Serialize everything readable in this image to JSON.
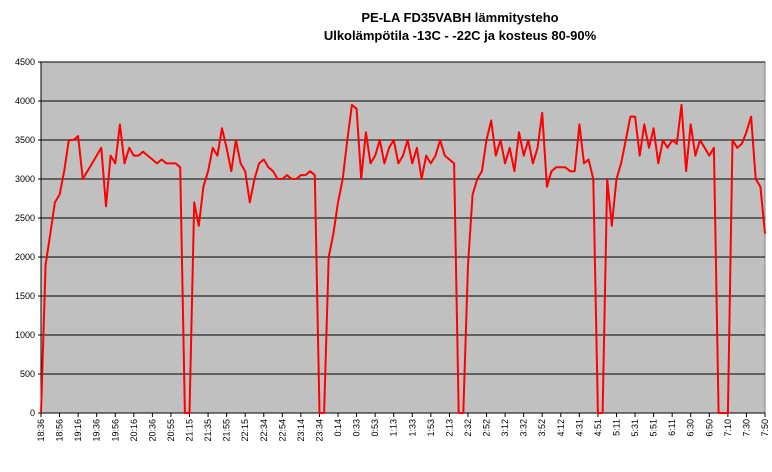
{
  "chart_data": {
    "type": "line",
    "title": "PE-LA FD35VABH lämmitysteho",
    "subtitle": "Ulkolämpötila  -13C - -22C ja kosteus 80-90%",
    "categories": [
      "18:36",
      null,
      null,
      null,
      "18:56",
      null,
      null,
      null,
      "19:16",
      null,
      null,
      null,
      "19:36",
      null,
      null,
      null,
      "19:56",
      null,
      null,
      null,
      "20:16",
      null,
      null,
      null,
      "20:36",
      null,
      null,
      null,
      "20:55",
      null,
      null,
      null,
      "21:15",
      null,
      null,
      null,
      "21:35",
      null,
      null,
      null,
      "21:55",
      null,
      null,
      null,
      "22:15",
      null,
      null,
      null,
      "22:34",
      null,
      null,
      null,
      "22:54",
      null,
      null,
      null,
      "23:14",
      null,
      null,
      null,
      "23:34",
      null,
      null,
      null,
      "0:14",
      null,
      null,
      null,
      "0:33",
      null,
      null,
      null,
      "0:53",
      null,
      null,
      null,
      "1:13",
      null,
      null,
      null,
      "1:33",
      null,
      null,
      null,
      "1:53",
      null,
      null,
      null,
      "2:13",
      null,
      null,
      null,
      "2:32",
      null,
      null,
      null,
      "2:52",
      null,
      null,
      null,
      "3:12",
      null,
      null,
      null,
      "3:32",
      null,
      null,
      null,
      "3:52",
      null,
      null,
      null,
      "4:12",
      null,
      null,
      null,
      "4:31",
      null,
      null,
      null,
      "4:51",
      null,
      null,
      null,
      "5:11",
      null,
      null,
      null,
      "5:31",
      null,
      null,
      null,
      "5:51",
      null,
      null,
      null,
      "6:11",
      null,
      null,
      null,
      "6:30",
      null,
      null,
      null,
      "6:50",
      null,
      null,
      null,
      "7:10",
      null,
      null,
      null,
      "7:30",
      null,
      null,
      null,
      "7:50"
    ],
    "series": [
      {
        "name": "lämmitysteho",
        "color": "#ff0000",
        "values": [
          0,
          1900,
          2300,
          2700,
          2800,
          3100,
          3500,
          3500,
          3550,
          3000,
          3100,
          3200,
          3300,
          3400,
          2650,
          3300,
          3200,
          3700,
          3200,
          3400,
          3300,
          3300,
          3350,
          3300,
          3250,
          3200,
          3250,
          3200,
          3200,
          3200,
          3150,
          0,
          0,
          2700,
          2400,
          2900,
          3100,
          3400,
          3300,
          3650,
          3400,
          3100,
          3500,
          3200,
          3100,
          2700,
          3000,
          3200,
          3250,
          3150,
          3100,
          3000,
          3000,
          3050,
          3000,
          3000,
          3050,
          3050,
          3100,
          3050,
          0,
          0,
          2000,
          2300,
          2700,
          3000,
          3500,
          3950,
          3900,
          3000,
          3600,
          3200,
          3300,
          3500,
          3200,
          3400,
          3500,
          3200,
          3300,
          3500,
          3200,
          3400,
          3000,
          3300,
          3200,
          3300,
          3500,
          3300,
          3250,
          3200,
          0,
          0,
          1900,
          2800,
          3000,
          3100,
          3500,
          3750,
          3300,
          3500,
          3200,
          3400,
          3100,
          3600,
          3300,
          3500,
          3200,
          3400,
          3850,
          2900,
          3100,
          3150,
          3150,
          3150,
          3100,
          3100,
          3700,
          3200,
          3250,
          3000,
          0,
          0,
          3000,
          2400,
          3000,
          3200,
          3500,
          3800,
          3800,
          3300,
          3700,
          3400,
          3650,
          3200,
          3500,
          3400,
          3500,
          3450,
          3950,
          3100,
          3700,
          3300,
          3500,
          3400,
          3300,
          3400,
          0,
          0,
          0,
          3500,
          3400,
          3450,
          3600,
          3800,
          3000,
          2900,
          2300
        ]
      }
    ],
    "ylim": [
      0,
      4500
    ],
    "yticks": [
      0,
      500,
      1000,
      1500,
      2000,
      2500,
      3000,
      3500,
      4000,
      4500
    ],
    "grid": true
  }
}
